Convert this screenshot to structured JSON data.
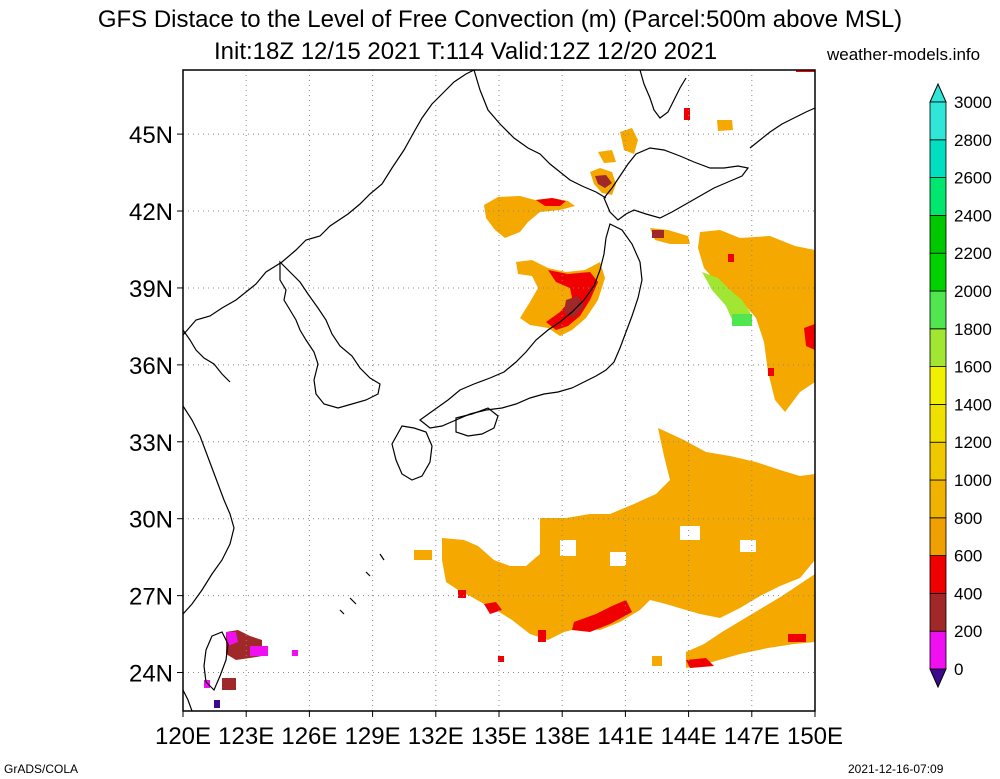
{
  "title_line1": "GFS Distace to the Level of Free Convection (m) (Parcel:500m above MSL)",
  "title_line2": "Init:18Z 12/15 2021 T:114 Valid:12Z 12/20 2021",
  "site": "weather-models.info",
  "footer_left": "GrADS/COLA",
  "footer_right": "2021-12-16-07:09",
  "map": {
    "type": "map",
    "projection": "lat-lon",
    "lon_range": [
      120,
      150
    ],
    "lat_range": [
      22.5,
      47.5
    ],
    "lon_ticks": [
      "120E",
      "123E",
      "126E",
      "129E",
      "132E",
      "135E",
      "138E",
      "141E",
      "144E",
      "147E",
      "150E"
    ],
    "lat_ticks": [
      "24N",
      "27N",
      "30N",
      "33N",
      "36N",
      "39N",
      "42N",
      "45N"
    ],
    "grid": "dotted"
  },
  "colorbar": {
    "labels": [
      "0",
      "200",
      "400",
      "600",
      "800",
      "1000",
      "1200",
      "1400",
      "1600",
      "1800",
      "2000",
      "2200",
      "2400",
      "2600",
      "2800",
      "3000"
    ],
    "colors": [
      "#3c0a8c",
      "#f00ff0",
      "#a02828",
      "#f00000",
      "#f0a000",
      "#f0b400",
      "#f0c800",
      "#f0e000",
      "#f0f000",
      "#a0e632",
      "#50e650",
      "#00d200",
      "#00c800",
      "#00e66e",
      "#00e0c0",
      "#30e6d8"
    ],
    "under_color": "#3c0a8c",
    "over_color": "#30e6d8"
  },
  "colors": {
    "orange": "#f5a800",
    "orange_light": "#fab400",
    "red": "#f00000",
    "brown": "#a02828",
    "magenta": "#f00ff0",
    "purple": "#3c0a8c",
    "green_light": "#a0e632",
    "green": "#50e650"
  }
}
